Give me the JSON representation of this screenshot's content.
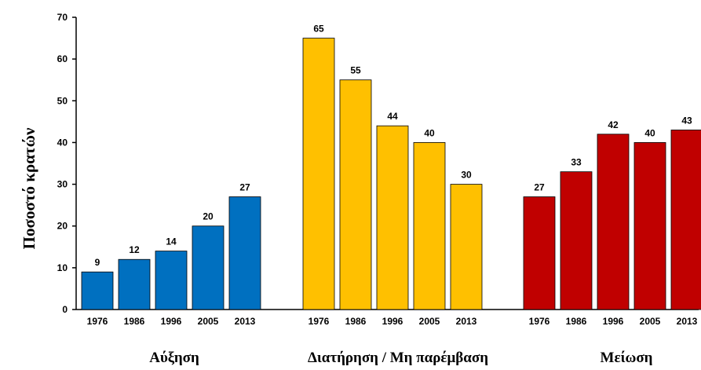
{
  "chart_data": {
    "type": "bar",
    "ylabel": "Ποσοστό κρατών",
    "ylim": [
      0,
      70
    ],
    "yticks": [
      0,
      10,
      20,
      30,
      40,
      50,
      60,
      70
    ],
    "grid": false,
    "groups": [
      {
        "name": "Αύξηση",
        "color": "#0070C0",
        "categories": [
          "1976",
          "1986",
          "1996",
          "2005",
          "2013"
        ],
        "values": [
          9,
          12,
          14,
          20,
          27
        ]
      },
      {
        "name": "Διατήρηση / Μη παρέμβαση",
        "color": "#FFC000",
        "categories": [
          "1976",
          "1986",
          "1996",
          "2005",
          "2013"
        ],
        "values": [
          65,
          55,
          44,
          40,
          30
        ]
      },
      {
        "name": "Μείωση",
        "color": "#C00000",
        "categories": [
          "1976",
          "1986",
          "1996",
          "2005",
          "2013"
        ],
        "values": [
          27,
          33,
          42,
          40,
          43
        ]
      }
    ]
  }
}
